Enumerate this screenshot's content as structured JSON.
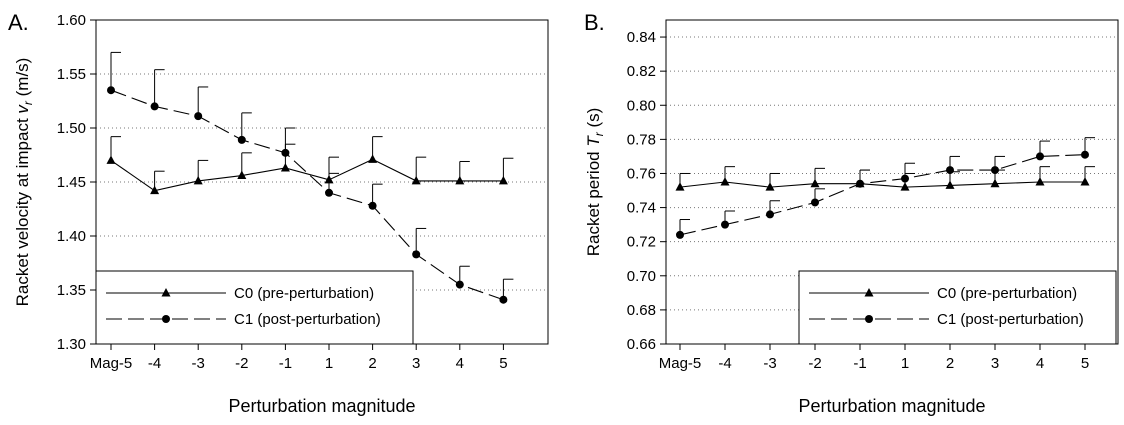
{
  "chart_data": [
    {
      "type": "line",
      "panel_label": "A.",
      "title": "",
      "xlabel": "Perturbation magnitude",
      "ylabel_main": "Racket velocity at impact ",
      "ylabel_var": "v",
      "ylabel_sub": "r",
      "ylabel_unit": " (m/s)",
      "categories": [
        "Mag-5",
        "-4",
        "-3",
        "-2",
        "-1",
        "1",
        "2",
        "3",
        "4",
        "5"
      ],
      "ylim": [
        1.3,
        1.6
      ],
      "yticks": [
        "1.30",
        "1.35",
        "1.40",
        "1.45",
        "1.50",
        "1.55",
        "1.60"
      ],
      "grid": "horizontal dotted",
      "legend_position": "bottom-left",
      "series": [
        {
          "name": "C0  (pre-perturbation)",
          "marker": "triangle",
          "line_style": "solid",
          "values": [
            1.47,
            1.442,
            1.451,
            1.456,
            1.463,
            1.452,
            1.471,
            1.451,
            1.451,
            1.451
          ],
          "error": [
            0.022,
            0.018,
            0.019,
            0.021,
            0.037,
            0.021,
            0.021,
            0.022,
            0.018,
            0.021
          ]
        },
        {
          "name": "C1  (post-perturbation)",
          "marker": "circle",
          "line_style": "dashed",
          "values": [
            1.535,
            1.52,
            1.511,
            1.489,
            1.477,
            1.44,
            1.428,
            1.383,
            1.355,
            1.341
          ],
          "error": [
            0.035,
            0.034,
            0.027,
            0.025,
            0.008,
            0.018,
            0.02,
            0.024,
            0.017,
            0.019
          ]
        }
      ]
    },
    {
      "type": "line",
      "panel_label": "B.",
      "title": "",
      "xlabel": "Perturbation magnitude",
      "ylabel_main": "Racket period ",
      "ylabel_var": "T",
      "ylabel_sub": "r",
      "ylabel_unit": " (s)",
      "categories": [
        "Mag-5",
        "-4",
        "-3",
        "-2",
        "-1",
        "1",
        "2",
        "3",
        "4",
        "5"
      ],
      "ylim": [
        0.66,
        0.85
      ],
      "yticks": [
        "0.66",
        "0.68",
        "0.70",
        "0.72",
        "0.74",
        "0.76",
        "0.78",
        "0.80",
        "0.82",
        "0.84"
      ],
      "grid": "horizontal dotted",
      "legend_position": "bottom-right",
      "series": [
        {
          "name": "C0  (pre-perturbation)",
          "marker": "triangle",
          "line_style": "solid",
          "values": [
            0.752,
            0.755,
            0.752,
            0.754,
            0.754,
            0.752,
            0.753,
            0.754,
            0.755,
            0.755
          ],
          "error": [
            0.008,
            0.009,
            0.008,
            0.009,
            0.008,
            0.008,
            0.008,
            0.008,
            0.009,
            0.009
          ]
        },
        {
          "name": "C1  (post-perturbation)",
          "marker": "circle",
          "line_style": "dashed",
          "values": [
            0.724,
            0.73,
            0.736,
            0.743,
            0.754,
            0.757,
            0.762,
            0.762,
            0.77,
            0.771
          ],
          "error": [
            0.009,
            0.008,
            0.008,
            0.008,
            0.008,
            0.009,
            0.008,
            0.008,
            0.009,
            0.01
          ]
        }
      ]
    }
  ]
}
